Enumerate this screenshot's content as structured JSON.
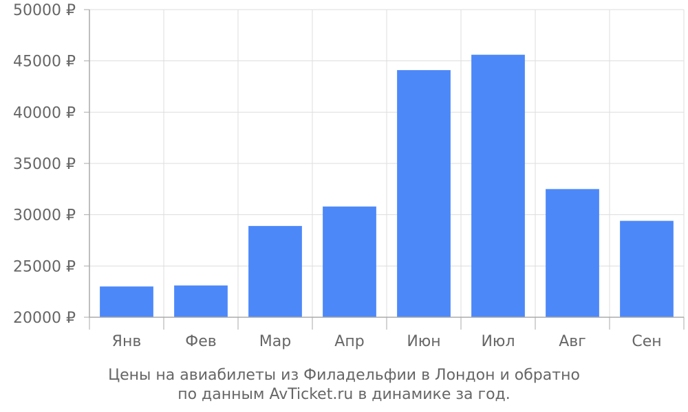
{
  "chart_data": {
    "type": "bar",
    "categories": [
      "Янв",
      "Фев",
      "Мар",
      "Апр",
      "Июн",
      "Июл",
      "Авг",
      "Сен"
    ],
    "values": [
      23000,
      23100,
      28900,
      30800,
      44100,
      45600,
      32500,
      29400
    ],
    "ylim": [
      20000,
      50000
    ],
    "yticks": [
      20000,
      25000,
      30000,
      35000,
      40000,
      45000,
      50000
    ],
    "ytick_labels": [
      "20000 ₽",
      "25000 ₽",
      "30000 ₽",
      "35000 ₽",
      "40000 ₽",
      "45000 ₽",
      "50000 ₽"
    ],
    "grid": true,
    "bar_color": "#4d88f9",
    "grid_color": "#dddddd",
    "axis_color": "#aaaaaa",
    "text_color": "#666666"
  },
  "caption": {
    "line1": "Цены на авиабилеты из Филадельфии в Лондон и обратно",
    "line2": "по данным AvTicket.ru в динамике за год."
  }
}
